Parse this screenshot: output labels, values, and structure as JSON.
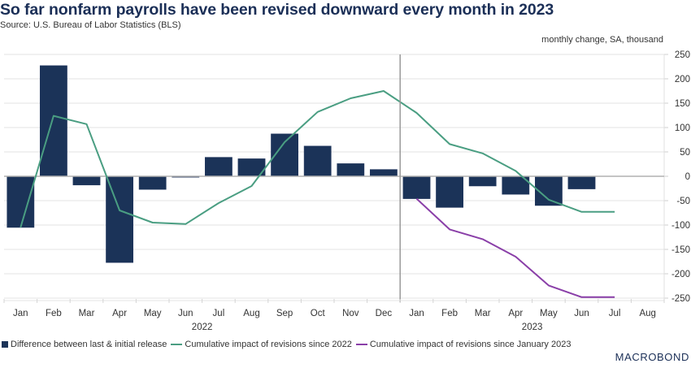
{
  "chart_data": {
    "type": "bar",
    "title": "So far nonfarm payrolls have been revised downward every month in 2023",
    "subtitle": "Source: U.S. Bureau of Labor Statistics (BLS)",
    "ylabel": "monthly change, SA, thousand",
    "ylim": [
      -250,
      250
    ],
    "yticks": [
      250,
      200,
      150,
      100,
      50,
      0,
      -50,
      -100,
      -150,
      -200,
      -250
    ],
    "y_axis_side": "right",
    "grid": true,
    "categories": [
      "Jan",
      "Feb",
      "Mar",
      "Apr",
      "May",
      "Jun",
      "Jul",
      "Aug",
      "Sep",
      "Oct",
      "Nov",
      "Dec",
      "Jan",
      "Feb",
      "Mar",
      "Apr",
      "May",
      "Jun",
      "Jul",
      "Aug"
    ],
    "year_labels": [
      {
        "label": "2022",
        "start_index": 0,
        "end_index": 11
      },
      {
        "label": "2023",
        "start_index": 12,
        "end_index": 19
      }
    ],
    "divider_after_index": 11,
    "series": [
      {
        "name": "Difference between last & initial release",
        "type": "bar",
        "color": "#1b3358",
        "values": [
          -105,
          227,
          -18,
          -177,
          -27,
          -2,
          39,
          36,
          87,
          62,
          26,
          14,
          -46,
          -64,
          -20,
          -37,
          -60,
          -26,
          null,
          null
        ]
      },
      {
        "name": "Cumulative impact of revisions since 2022",
        "type": "line",
        "color": "#4a9e82",
        "values": [
          -105,
          124,
          107,
          -70,
          -95,
          -98,
          -55,
          -20,
          70,
          132,
          160,
          175,
          130,
          66,
          47,
          11,
          -48,
          -73,
          -73,
          null
        ]
      },
      {
        "name": "Cumulative impact of revisions since January 2023",
        "type": "line",
        "color": "#8a3fa8",
        "values": [
          null,
          null,
          null,
          null,
          null,
          null,
          null,
          null,
          null,
          null,
          null,
          null,
          -46,
          -109,
          -129,
          -165,
          -224,
          -248,
          -248,
          null
        ]
      }
    ],
    "legend_position": "bottom-left"
  },
  "branding": {
    "logo_text": "MACROBOND"
  }
}
